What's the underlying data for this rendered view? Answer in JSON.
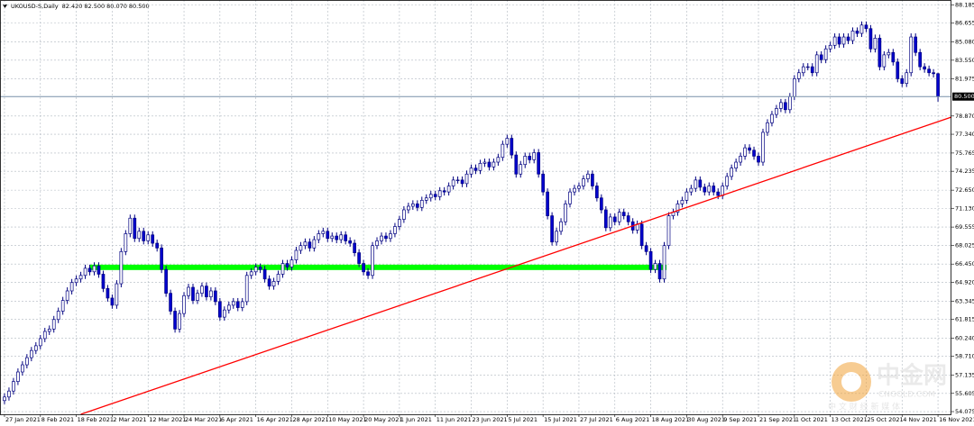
{
  "chart_data": {
    "type": "candlestick",
    "header": {
      "symbol": "UKOUSD-S,Daily",
      "values": [
        {
          "value": 82.42,
          "label": "82.420"
        },
        {
          "value": 82.5,
          "label": "82.500"
        },
        {
          "value": 80.07,
          "label": "80.070"
        },
        {
          "value": 80.5,
          "label": "80.500"
        }
      ]
    },
    "up_color": "#ffffff",
    "down_color": "#0000cd",
    "wick_color": "#000080",
    "xlim": [
      -1,
      211
    ],
    "ylim": [
      53.85,
      88.6
    ],
    "grid": true,
    "xticks": [
      {
        "value": 0,
        "label": "27 Jan 2021"
      },
      {
        "value": 8,
        "label": "8 Feb 2021"
      },
      {
        "value": 16,
        "label": "18 Feb 2021"
      },
      {
        "value": 24,
        "label": "2 Mar 2021"
      },
      {
        "value": 32,
        "label": "12 Mar 2021"
      },
      {
        "value": 40,
        "label": "24 Mar 2021"
      },
      {
        "value": 48,
        "label": "6 Apr 2021"
      },
      {
        "value": 56,
        "label": "16 Apr 2021"
      },
      {
        "value": 64,
        "label": "28 Apr 2021"
      },
      {
        "value": 72,
        "label": "10 May 2021"
      },
      {
        "value": 80,
        "label": "20 May 2021"
      },
      {
        "value": 88,
        "label": "1 Jun 2021"
      },
      {
        "value": 96,
        "label": "11 Jun 2021"
      },
      {
        "value": 104,
        "label": "23 Jun 2021"
      },
      {
        "value": 112,
        "label": "5 Jul 2021"
      },
      {
        "value": 120,
        "label": "15 Jul 2021"
      },
      {
        "value": 128,
        "label": "27 Jul 2021"
      },
      {
        "value": 136,
        "label": "6 Aug 2021"
      },
      {
        "value": 144,
        "label": "18 Aug 2021"
      },
      {
        "value": 152,
        "label": "30 Aug 2021"
      },
      {
        "value": 160,
        "label": "9 Sep 2021"
      },
      {
        "value": 168,
        "label": "21 Sep 2021"
      },
      {
        "value": 176,
        "label": "1 Oct 2021"
      },
      {
        "value": 184,
        "label": "13 Oct 2021"
      },
      {
        "value": 192,
        "label": "25 Oct 2021"
      },
      {
        "value": 200,
        "label": "4 Nov 2021"
      },
      {
        "value": 208,
        "label": "16 Nov 2021"
      }
    ],
    "yticks": [
      {
        "value": 88.185,
        "label": "88.185"
      },
      {
        "value": 86.655,
        "label": "86.655"
      },
      {
        "value": 85.08,
        "label": "85.080"
      },
      {
        "value": 83.55,
        "label": "83.550"
      },
      {
        "value": 81.975,
        "label": "81.975"
      },
      {
        "value": 78.87,
        "label": "78.870"
      },
      {
        "value": 77.34,
        "label": "77.340"
      },
      {
        "value": 75.765,
        "label": "75.765"
      },
      {
        "value": 74.235,
        "label": "74.235"
      },
      {
        "value": 72.65,
        "label": "72.650"
      },
      {
        "value": 71.13,
        "label": "71.130"
      },
      {
        "value": 69.555,
        "label": "69.555"
      },
      {
        "value": 68.025,
        "label": "68.025"
      },
      {
        "value": 66.45,
        "label": "66.450"
      },
      {
        "value": 64.92,
        "label": "64.920"
      },
      {
        "value": 63.345,
        "label": "63.345"
      },
      {
        "value": 61.815,
        "label": "61.815"
      },
      {
        "value": 60.24,
        "label": "60.240"
      },
      {
        "value": 58.71,
        "label": "58.710"
      },
      {
        "value": 57.135,
        "label": "57.135"
      },
      {
        "value": 55.605,
        "label": "55.605"
      },
      {
        "value": 54.075,
        "label": "54.075"
      }
    ],
    "current_price": {
      "value": 80.5,
      "label": "80.500",
      "color": "#7890a8"
    },
    "support_zone": {
      "color": "#00ff00",
      "x": [
        19,
        147.5
      ],
      "y": [
        65.95,
        66.4
      ]
    },
    "trendline": {
      "color": "#ff0000",
      "x": [
        17,
        211
      ],
      "y": [
        53.85,
        78.78
      ]
    },
    "open": [
      55.0,
      55.3,
      55.8,
      56.6,
      57.4,
      58.0,
      58.6,
      59.2,
      59.6,
      60.2,
      60.8,
      61.0,
      61.8,
      62.5,
      63.4,
      64.2,
      64.9,
      65.2,
      65.5,
      66.1,
      65.8,
      66.3,
      65.6,
      64.4,
      63.6,
      63.0,
      64.8,
      67.5,
      69.0,
      70.3,
      68.6,
      69.2,
      68.4,
      68.9,
      68.2,
      67.8,
      66.0,
      64.0,
      62.5,
      61.0,
      62.3,
      63.8,
      64.5,
      63.4,
      64.0,
      64.6,
      63.7,
      64.2,
      63.3,
      62.0,
      62.6,
      63.0,
      63.3,
      62.8,
      63.3,
      65.5,
      65.8,
      66.2,
      66.0,
      65.2,
      64.6,
      65.0,
      65.6,
      66.5,
      66.2,
      66.8,
      67.6,
      68.0,
      68.3,
      67.8,
      68.5,
      69.0,
      69.2,
      68.6,
      68.8,
      68.5,
      68.9,
      68.4,
      68.2,
      67.4,
      66.5,
      65.8,
      65.5,
      68.0,
      68.4,
      68.8,
      68.6,
      69.0,
      69.6,
      70.2,
      71.0,
      71.3,
      71.5,
      71.2,
      71.8,
      72.0,
      72.3,
      72.1,
      72.6,
      72.5,
      73.0,
      73.5,
      73.5,
      73.2,
      74.0,
      74.5,
      74.3,
      74.9,
      75.0,
      74.6,
      75.0,
      75.4,
      76.5,
      77.0,
      75.6,
      74.0,
      74.8,
      75.5,
      75.2,
      75.8,
      74.0,
      72.5,
      70.5,
      68.3,
      69.2,
      70.0,
      71.5,
      72.5,
      72.8,
      73.0,
      73.6,
      74.0,
      73.0,
      72.0,
      71.0,
      69.5,
      70.4,
      70.0,
      70.8,
      70.5,
      70.0,
      69.3,
      69.8,
      68.0,
      67.5,
      66.0,
      66.5,
      65.2,
      68.0,
      70.5,
      70.8,
      71.5,
      71.8,
      72.5,
      72.8,
      73.5,
      72.9,
      72.5,
      73.0,
      72.5,
      72.2,
      73.0,
      73.8,
      74.5,
      75.0,
      75.5,
      76.2,
      76.0,
      75.5,
      75.0,
      77.5,
      78.3,
      79.0,
      79.5,
      80.0,
      79.4,
      80.5,
      82.0,
      82.5,
      83.0,
      83.0,
      82.5,
      84.0,
      83.6,
      84.5,
      84.8,
      85.5,
      84.9,
      85.5,
      85.2,
      86.0,
      85.8,
      86.5,
      86.2,
      84.5,
      85.4,
      83.0,
      84.0,
      84.2,
      83.4,
      82.0,
      81.6,
      82.5,
      85.5,
      84.2,
      83.0,
      82.8,
      82.5,
      82.42
    ],
    "high": [
      55.6,
      56.1,
      56.9,
      57.7,
      58.3,
      58.9,
      59.5,
      59.9,
      60.5,
      61.1,
      61.3,
      62.1,
      62.8,
      63.7,
      64.5,
      65.2,
      65.5,
      65.8,
      66.4,
      66.4,
      66.6,
      66.6,
      65.9,
      64.7,
      63.9,
      65.1,
      67.8,
      69.3,
      70.6,
      70.6,
      69.5,
      69.5,
      69.2,
      69.2,
      68.5,
      68.1,
      66.3,
      64.3,
      62.8,
      62.6,
      64.1,
      64.8,
      64.8,
      64.3,
      64.9,
      64.9,
      64.5,
      64.5,
      63.6,
      62.9,
      63.3,
      63.6,
      63.6,
      63.6,
      65.8,
      66.1,
      66.5,
      66.5,
      66.3,
      65.5,
      65.3,
      65.9,
      66.8,
      66.8,
      67.1,
      67.9,
      68.3,
      68.6,
      68.6,
      68.8,
      69.3,
      69.5,
      69.5,
      69.1,
      69.1,
      69.2,
      69.2,
      68.7,
      68.5,
      67.7,
      66.8,
      66.1,
      68.3,
      68.7,
      69.1,
      69.1,
      69.3,
      69.9,
      70.5,
      71.3,
      71.6,
      71.8,
      71.8,
      72.1,
      72.3,
      72.6,
      72.6,
      72.9,
      72.9,
      73.3,
      73.8,
      73.8,
      73.8,
      74.3,
      74.8,
      74.8,
      75.2,
      75.3,
      75.3,
      75.3,
      75.7,
      76.8,
      77.3,
      77.3,
      75.9,
      75.1,
      75.8,
      75.8,
      76.1,
      76.1,
      74.3,
      72.8,
      70.8,
      69.5,
      70.3,
      71.8,
      72.8,
      73.1,
      73.3,
      73.9,
      74.3,
      74.3,
      73.3,
      72.3,
      71.3,
      70.7,
      70.7,
      71.1,
      71.1,
      70.8,
      70.3,
      70.1,
      70.1,
      68.3,
      67.8,
      66.8,
      66.8,
      68.3,
      70.8,
      71.1,
      71.8,
      72.1,
      72.8,
      73.1,
      73.8,
      73.8,
      73.2,
      73.3,
      73.3,
      72.8,
      73.3,
      74.1,
      74.8,
      75.3,
      75.8,
      76.5,
      76.5,
      76.3,
      75.8,
      77.8,
      78.6,
      79.3,
      79.8,
      80.3,
      80.3,
      80.8,
      82.3,
      82.8,
      83.3,
      83.3,
      83.3,
      84.3,
      84.3,
      84.8,
      85.1,
      85.8,
      85.8,
      85.8,
      85.8,
      86.3,
      86.3,
      86.8,
      86.8,
      86.5,
      85.7,
      85.7,
      84.3,
      84.5,
      84.5,
      83.7,
      82.3,
      82.8,
      85.8,
      85.8,
      84.5,
      83.3,
      83.1,
      82.8,
      82.5
    ],
    "low": [
      54.7,
      55.0,
      55.5,
      56.3,
      57.1,
      57.7,
      58.3,
      58.9,
      59.3,
      59.9,
      60.5,
      60.7,
      61.5,
      62.2,
      63.1,
      63.9,
      64.6,
      64.9,
      65.2,
      65.5,
      65.5,
      65.3,
      64.1,
      63.3,
      62.7,
      62.7,
      64.5,
      67.2,
      68.7,
      68.3,
      68.3,
      68.1,
      68.1,
      67.9,
      67.5,
      65.7,
      63.7,
      62.2,
      60.7,
      60.7,
      62.0,
      63.5,
      63.1,
      63.1,
      63.7,
      63.4,
      63.4,
      63.0,
      61.7,
      61.7,
      62.3,
      62.7,
      62.5,
      62.5,
      63.0,
      65.2,
      65.5,
      65.7,
      64.9,
      64.3,
      64.3,
      64.7,
      65.3,
      65.9,
      65.9,
      66.5,
      67.3,
      67.7,
      67.5,
      67.5,
      68.2,
      68.7,
      68.3,
      68.3,
      68.2,
      68.2,
      68.1,
      67.9,
      67.1,
      66.2,
      65.5,
      65.2,
      65.2,
      67.7,
      68.1,
      68.3,
      68.3,
      68.7,
      69.3,
      69.9,
      70.7,
      71.0,
      70.9,
      70.9,
      71.5,
      71.7,
      71.8,
      71.8,
      72.2,
      72.2,
      72.7,
      73.2,
      72.9,
      72.9,
      73.7,
      74.0,
      74.0,
      74.6,
      74.3,
      74.3,
      74.7,
      75.1,
      76.2,
      75.3,
      73.7,
      73.7,
      74.5,
      74.9,
      74.9,
      73.7,
      72.2,
      70.2,
      68.0,
      68.0,
      68.9,
      69.7,
      71.2,
      72.2,
      72.5,
      72.7,
      73.3,
      72.7,
      71.7,
      70.7,
      69.2,
      69.2,
      69.7,
      69.7,
      70.2,
      69.7,
      69.0,
      69.0,
      67.7,
      67.2,
      65.7,
      65.7,
      64.9,
      64.9,
      67.7,
      70.2,
      70.5,
      71.2,
      71.5,
      72.2,
      72.5,
      72.6,
      72.2,
      72.2,
      72.2,
      71.9,
      71.9,
      72.7,
      73.5,
      74.2,
      74.7,
      75.2,
      75.7,
      75.2,
      74.7,
      74.7,
      77.2,
      78.0,
      78.7,
      79.2,
      79.1,
      79.1,
      80.2,
      81.7,
      82.2,
      82.7,
      82.2,
      82.2,
      83.3,
      83.3,
      84.2,
      84.5,
      84.6,
      84.6,
      84.9,
      84.9,
      85.5,
      85.5,
      85.9,
      84.2,
      84.2,
      82.7,
      82.7,
      83.7,
      83.1,
      81.7,
      81.3,
      81.3,
      82.2,
      83.9,
      82.7,
      82.5,
      82.2,
      82.1,
      80.07
    ],
    "close": [
      55.3,
      55.8,
      56.6,
      57.4,
      58.0,
      58.6,
      59.2,
      59.6,
      60.2,
      60.8,
      61.0,
      61.8,
      62.5,
      63.4,
      64.2,
      64.9,
      65.2,
      65.5,
      66.1,
      65.8,
      66.3,
      65.6,
      64.4,
      63.6,
      63.0,
      64.8,
      67.5,
      69.0,
      70.3,
      68.6,
      69.2,
      68.4,
      68.9,
      68.2,
      67.8,
      66.0,
      64.0,
      62.5,
      61.0,
      62.3,
      63.8,
      64.5,
      63.4,
      64.0,
      64.6,
      63.7,
      64.2,
      63.3,
      62.0,
      62.6,
      63.0,
      63.3,
      62.8,
      63.3,
      65.5,
      65.8,
      66.2,
      66.0,
      65.2,
      64.6,
      65.0,
      65.6,
      66.5,
      66.2,
      66.8,
      67.6,
      68.0,
      68.3,
      67.8,
      68.5,
      69.0,
      69.2,
      68.6,
      68.8,
      68.5,
      68.9,
      68.4,
      68.2,
      67.4,
      66.5,
      65.8,
      65.5,
      68.0,
      68.4,
      68.8,
      68.6,
      69.0,
      69.6,
      70.2,
      71.0,
      71.3,
      71.5,
      71.2,
      71.8,
      72.0,
      72.3,
      72.1,
      72.6,
      72.5,
      73.0,
      73.5,
      73.5,
      73.2,
      74.0,
      74.5,
      74.3,
      74.9,
      75.0,
      74.6,
      75.0,
      75.4,
      76.5,
      77.0,
      75.6,
      74.0,
      74.8,
      75.5,
      75.2,
      75.8,
      74.0,
      72.5,
      70.5,
      68.3,
      69.2,
      70.0,
      71.5,
      72.5,
      72.8,
      73.0,
      73.6,
      74.0,
      73.0,
      72.0,
      71.0,
      69.5,
      70.4,
      70.0,
      70.8,
      70.5,
      70.0,
      69.3,
      69.8,
      68.0,
      67.5,
      66.0,
      66.5,
      65.2,
      68.0,
      70.5,
      70.8,
      71.5,
      71.8,
      72.5,
      72.8,
      73.5,
      72.9,
      72.5,
      73.0,
      72.5,
      72.2,
      73.0,
      73.8,
      74.5,
      75.0,
      75.5,
      76.2,
      76.0,
      75.5,
      75.0,
      77.5,
      78.3,
      79.0,
      79.5,
      80.0,
      79.4,
      80.5,
      82.0,
      82.5,
      83.0,
      83.0,
      82.5,
      84.0,
      83.6,
      84.5,
      84.8,
      85.5,
      84.9,
      85.5,
      85.2,
      86.0,
      85.8,
      86.5,
      86.2,
      84.5,
      85.4,
      83.0,
      84.0,
      84.2,
      83.4,
      82.0,
      81.6,
      82.5,
      85.5,
      84.2,
      83.0,
      82.8,
      82.5,
      82.42,
      80.5
    ]
  },
  "watermark": {
    "brand": "中金网",
    "site": "CNGOLD.COM",
    "slogan": "中 文 财 经 新 媒 体"
  }
}
